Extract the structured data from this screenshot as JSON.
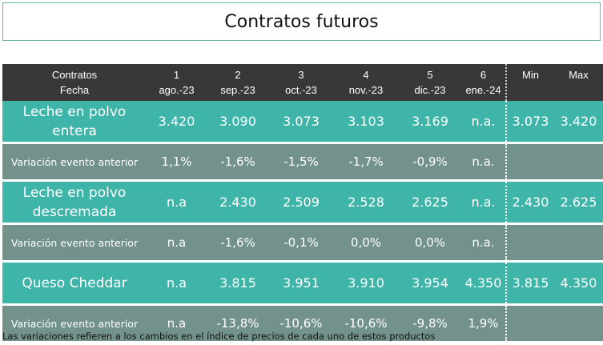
{
  "title": "Contratos futuros",
  "header": {
    "label_line1": "Contratos",
    "label_line2": "Fecha",
    "contracts": [
      {
        "num": "1",
        "date": "ago.-23"
      },
      {
        "num": "2",
        "date": "sep.-23"
      },
      {
        "num": "3",
        "date": "oct.-23"
      },
      {
        "num": "4",
        "date": "nov.-23"
      },
      {
        "num": "5",
        "date": "dic.-23"
      },
      {
        "num": "6",
        "date": "ene.-24"
      }
    ],
    "min_label": "Min",
    "max_label": "Max"
  },
  "rows": [
    {
      "type": "product",
      "name_line1": "Leche en polvo",
      "name_line2": "entera",
      "values": [
        "3.420",
        "3.090",
        "3.073",
        "3.103",
        "3.169",
        "n.a."
      ],
      "min": "3.073",
      "max": "3.420"
    },
    {
      "type": "variation",
      "name": "Variación evento anterior",
      "values": [
        "1,1%",
        "-1,6%",
        "-1,5%",
        "-1,7%",
        "-0,9%",
        "n.a."
      ],
      "min": "",
      "max": ""
    },
    {
      "type": "product",
      "name_line1": "Leche en polvo",
      "name_line2": "descremada",
      "values": [
        "n.a",
        "2.430",
        "2.509",
        "2.528",
        "2.625",
        "n.a."
      ],
      "min": "2.430",
      "max": "2.625"
    },
    {
      "type": "variation",
      "name": "Variación evento anterior",
      "values": [
        "n.a",
        "-1,6%",
        "-0,1%",
        "0,0%",
        "0,0%",
        "n.a."
      ],
      "min": "",
      "max": ""
    },
    {
      "type": "product",
      "name_line1": "Queso Cheddar",
      "name_line2": "",
      "values": [
        "n.a",
        "3.815",
        "3.951",
        "3.910",
        "3.954",
        "4.350"
      ],
      "min": "3.815",
      "max": "4.350"
    },
    {
      "type": "variation",
      "name": "Variación evento anterior",
      "values": [
        "n.a",
        "-13,8%",
        "-10,6%",
        "-10,6%",
        "-9,8%",
        "1,9%"
      ],
      "min": "",
      "max": ""
    }
  ],
  "footnote": "Las variaciones refieren a los cambios en el índice de precios de cada uno de estos productos",
  "colors": {
    "header_bg": "#383838",
    "product_row_bg": "#3fb4a9",
    "variation_row_bg": "#72928b",
    "title_border": "#62b3ad"
  }
}
